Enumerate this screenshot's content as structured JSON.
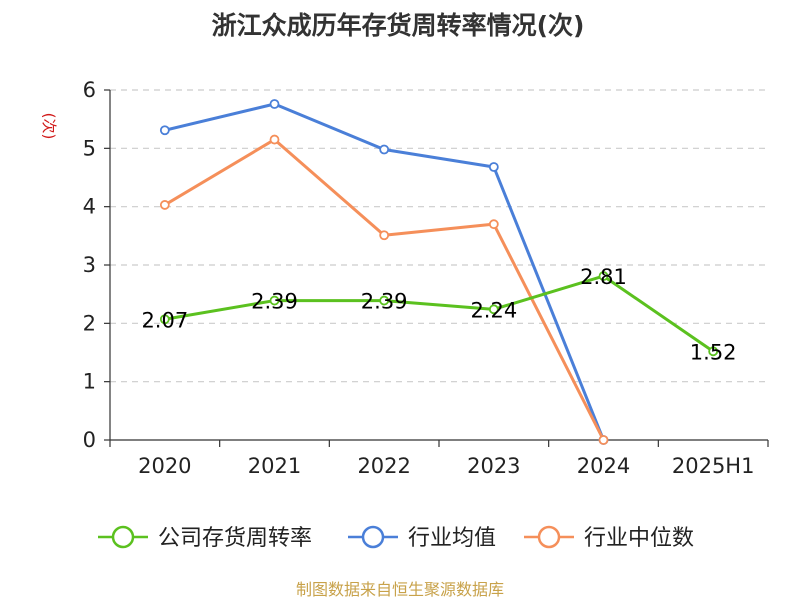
{
  "source": "制图数据来自恒生聚源数据库",
  "colors": {
    "source_text": "#c8a24a",
    "ylabel_text": "#d11a1a",
    "grid": "#cccccc",
    "axis": "#333333"
  },
  "chart_data": {
    "type": "line",
    "title": "浙江众成历年存货周转率情况(次)",
    "xlabel": "",
    "ylabel": "(次)",
    "categories": [
      "2020",
      "2021",
      "2022",
      "2023",
      "2024",
      "2025H1"
    ],
    "yticks": [
      "0",
      "1",
      "2",
      "3",
      "4",
      "5",
      "6"
    ],
    "ylim": [
      0,
      6
    ],
    "grid": true,
    "legend_position": "bottom",
    "series": [
      {
        "name": "公司存货周转率",
        "color": "#5bc11f",
        "values": [
          2.07,
          2.39,
          2.39,
          2.24,
          2.81,
          1.52
        ],
        "labels": [
          "2.07",
          "2.39",
          "2.39",
          "2.24",
          "2.81",
          "1.52"
        ]
      },
      {
        "name": "行业均值",
        "color": "#4a7fd8",
        "values": [
          5.31,
          5.76,
          4.98,
          4.68,
          0,
          null
        ]
      },
      {
        "name": "行业中位数",
        "color": "#f58f5a",
        "values": [
          4.03,
          5.15,
          3.51,
          3.7,
          0,
          null
        ]
      }
    ]
  }
}
